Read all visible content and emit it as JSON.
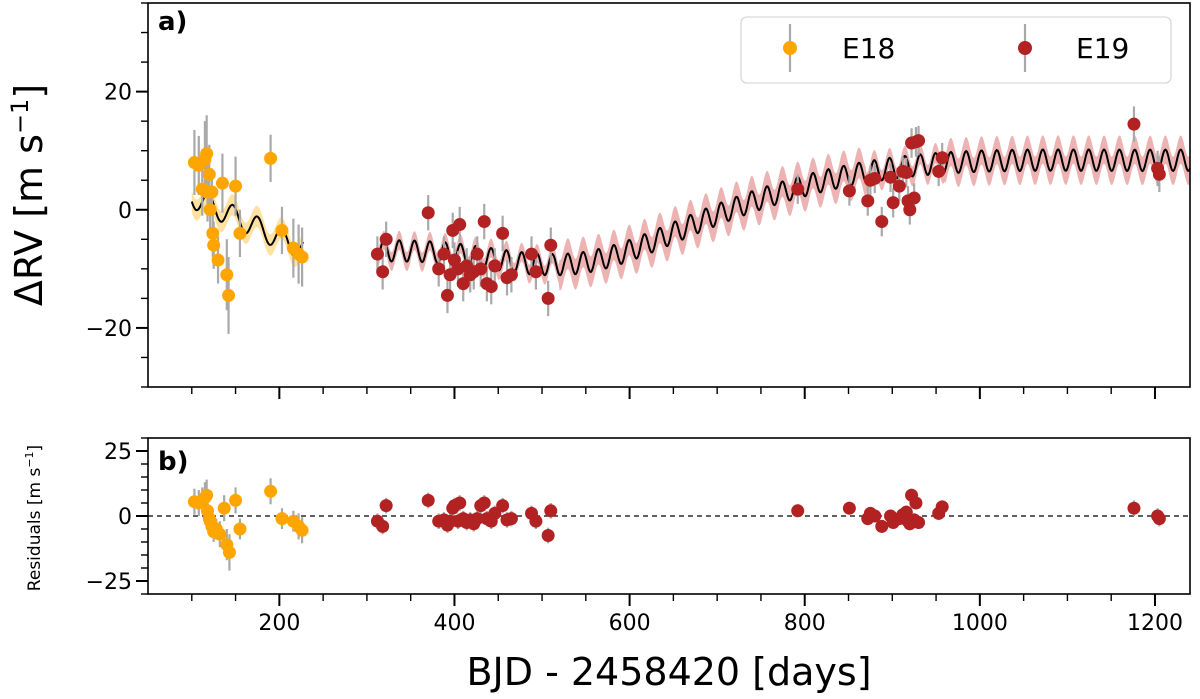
{
  "chart_data": [
    {
      "panel": "a)",
      "type": "scatter",
      "title": "",
      "xlabel": "",
      "ylabel": "ΔRV [m s⁻¹]",
      "ylabel_parts": {
        "main": "ΔRV [m s",
        "sup": "−1",
        "close": "]"
      },
      "xlim": [
        50,
        1240
      ],
      "ylim": [
        -30,
        35
      ],
      "yticks": [
        -20,
        0,
        20
      ],
      "ytick_labels": [
        "−20",
        "0",
        "20"
      ],
      "legend": {
        "position": "top-right",
        "entries": [
          "E18",
          "E19"
        ]
      },
      "series": [
        {
          "name": "E18",
          "color": "#FFA500",
          "points": [
            {
              "x": 103,
              "y": 8,
              "err": 5.5
            },
            {
              "x": 108,
              "y": 7.5,
              "err": 5
            },
            {
              "x": 112,
              "y": 3.5,
              "err": 4.5
            },
            {
              "x": 115,
              "y": 8.5,
              "err": 6.5
            },
            {
              "x": 117,
              "y": 9.5,
              "err": 6.5
            },
            {
              "x": 118,
              "y": 3,
              "err": 5
            },
            {
              "x": 120,
              "y": 6,
              "err": 5
            },
            {
              "x": 121,
              "y": 0,
              "err": 4
            },
            {
              "x": 123,
              "y": 3,
              "err": 4
            },
            {
              "x": 124,
              "y": -4,
              "err": 4
            },
            {
              "x": 125,
              "y": -6,
              "err": 4
            },
            {
              "x": 130,
              "y": -8.5,
              "err": 4
            },
            {
              "x": 135,
              "y": 4.5,
              "err": 5
            },
            {
              "x": 140,
              "y": -11,
              "err": 6
            },
            {
              "x": 142,
              "y": -14.5,
              "err": 6.5
            },
            {
              "x": 150,
              "y": 4,
              "err": 5
            },
            {
              "x": 155,
              "y": -4,
              "err": 4
            },
            {
              "x": 190,
              "y": 8.7,
              "err": 4
            },
            {
              "x": 203,
              "y": -3.5,
              "err": 4
            },
            {
              "x": 216,
              "y": -6.5,
              "err": 5
            },
            {
              "x": 222,
              "y": -7.5,
              "err": 5
            },
            {
              "x": 226,
              "y": -8,
              "err": 5
            }
          ]
        },
        {
          "name": "E19",
          "color": "#B22222",
          "points": [
            {
              "x": 312,
              "y": -7.5,
              "err": 3
            },
            {
              "x": 318,
              "y": -10.5,
              "err": 3
            },
            {
              "x": 322,
              "y": -5,
              "err": 3
            },
            {
              "x": 370,
              "y": -0.5,
              "err": 3
            },
            {
              "x": 382,
              "y": -10,
              "err": 3
            },
            {
              "x": 388,
              "y": -7.5,
              "err": 3
            },
            {
              "x": 392,
              "y": -14.5,
              "err": 3
            },
            {
              "x": 395,
              "y": -11,
              "err": 3
            },
            {
              "x": 398,
              "y": -3.5,
              "err": 3
            },
            {
              "x": 400,
              "y": -8.5,
              "err": 3
            },
            {
              "x": 404,
              "y": -10,
              "err": 3
            },
            {
              "x": 406,
              "y": -2.5,
              "err": 3
            },
            {
              "x": 410,
              "y": -12.5,
              "err": 3
            },
            {
              "x": 414,
              "y": -9.5,
              "err": 3
            },
            {
              "x": 418,
              "y": -11,
              "err": 3
            },
            {
              "x": 422,
              "y": -10.5,
              "err": 3
            },
            {
              "x": 426,
              "y": -7.5,
              "err": 3
            },
            {
              "x": 430,
              "y": -10,
              "err": 3
            },
            {
              "x": 434,
              "y": -2,
              "err": 3
            },
            {
              "x": 437,
              "y": -12.5,
              "err": 3
            },
            {
              "x": 442,
              "y": -13,
              "err": 3
            },
            {
              "x": 446,
              "y": -9.5,
              "err": 3
            },
            {
              "x": 455,
              "y": -4,
              "err": 3
            },
            {
              "x": 460,
              "y": -11.5,
              "err": 3
            },
            {
              "x": 465,
              "y": -11,
              "err": 3
            },
            {
              "x": 488,
              "y": -7.5,
              "err": 3
            },
            {
              "x": 493,
              "y": -10.5,
              "err": 3
            },
            {
              "x": 507,
              "y": -15,
              "err": 3
            },
            {
              "x": 510,
              "y": -6,
              "err": 3
            },
            {
              "x": 792,
              "y": 3.5,
              "err": 2.5
            },
            {
              "x": 851,
              "y": 3.2,
              "err": 2.5
            },
            {
              "x": 872,
              "y": 1.5,
              "err": 2.5
            },
            {
              "x": 875,
              "y": 5,
              "err": 2.5
            },
            {
              "x": 880,
              "y": 5.3,
              "err": 2.5
            },
            {
              "x": 888,
              "y": -2,
              "err": 2.5
            },
            {
              "x": 898,
              "y": 5.5,
              "err": 2.5
            },
            {
              "x": 901,
              "y": 1.2,
              "err": 2.5
            },
            {
              "x": 908,
              "y": 4,
              "err": 2.5
            },
            {
              "x": 912,
              "y": 6.5,
              "err": 2.5
            },
            {
              "x": 916,
              "y": 6.3,
              "err": 2.5
            },
            {
              "x": 918,
              "y": 1.5,
              "err": 2.5
            },
            {
              "x": 920,
              "y": 0,
              "err": 2.5
            },
            {
              "x": 922,
              "y": 11.3,
              "err": 2.5
            },
            {
              "x": 925,
              "y": 2,
              "err": 2.5
            },
            {
              "x": 927,
              "y": 11.5,
              "err": 2.5
            },
            {
              "x": 930,
              "y": 11.7,
              "err": 2.5
            },
            {
              "x": 953,
              "y": 6.5,
              "err": 2.5
            },
            {
              "x": 957,
              "y": 8.8,
              "err": 2.5
            },
            {
              "x": 1176,
              "y": 14.5,
              "err": 3
            },
            {
              "x": 1203,
              "y": 7,
              "err": 3
            },
            {
              "x": 1205,
              "y": 6,
              "err": 3
            }
          ]
        }
      ],
      "model": {
        "description": "GP + sinusoid model curve with confidence band",
        "line_color": "#000000",
        "band_color_e18": "#FFD98A",
        "band_color_e19": "#E8A0A0",
        "segments": [
          [
            100,
            228
          ],
          [
            312,
            1240
          ]
        ]
      }
    },
    {
      "panel": "b)",
      "type": "scatter",
      "title": "",
      "xlabel": "BJD - 2458420 [days]",
      "ylabel": "Residuals [m s⁻¹]",
      "ylabel_parts": {
        "main": "Residuals [m s",
        "sup": "−1",
        "close": "]"
      },
      "xlim": [
        50,
        1240
      ],
      "ylim": [
        -30,
        30
      ],
      "xticks": [
        200,
        400,
        600,
        800,
        1000,
        1200
      ],
      "xtick_labels": [
        "200",
        "400",
        "600",
        "800",
        "1000",
        "1200"
      ],
      "yticks": [
        -25,
        0,
        25
      ],
      "ytick_labels": [
        "−25",
        "0",
        "25"
      ],
      "zero_line": 0,
      "series": [
        {
          "name": "E18",
          "color": "#FFA500",
          "points": [
            {
              "x": 103,
              "y": 5.5,
              "err": 5
            },
            {
              "x": 108,
              "y": 5,
              "err": 5
            },
            {
              "x": 112,
              "y": 6,
              "err": 5
            },
            {
              "x": 115,
              "y": 7,
              "err": 6
            },
            {
              "x": 117,
              "y": 8,
              "err": 6
            },
            {
              "x": 118,
              "y": 2,
              "err": 5
            },
            {
              "x": 120,
              "y": -1,
              "err": 5
            },
            {
              "x": 121,
              "y": -2,
              "err": 4
            },
            {
              "x": 123,
              "y": -4,
              "err": 4
            },
            {
              "x": 125,
              "y": -6,
              "err": 4
            },
            {
              "x": 128,
              "y": -5,
              "err": 4
            },
            {
              "x": 132,
              "y": -7,
              "err": 5
            },
            {
              "x": 137,
              "y": 3,
              "err": 5
            },
            {
              "x": 140,
              "y": -11,
              "err": 6
            },
            {
              "x": 143,
              "y": -14,
              "err": 7
            },
            {
              "x": 150,
              "y": 6,
              "err": 5
            },
            {
              "x": 155,
              "y": -5,
              "err": 4
            },
            {
              "x": 190,
              "y": 9.5,
              "err": 5
            },
            {
              "x": 203,
              "y": -1,
              "err": 4
            },
            {
              "x": 216,
              "y": -2,
              "err": 4
            },
            {
              "x": 222,
              "y": -4,
              "err": 5
            },
            {
              "x": 226,
              "y": -5.5,
              "err": 5
            }
          ]
        },
        {
          "name": "E19",
          "color": "#B22222",
          "points": [
            {
              "x": 312,
              "y": -2,
              "err": 3
            },
            {
              "x": 318,
              "y": -4,
              "err": 3
            },
            {
              "x": 322,
              "y": 4,
              "err": 3
            },
            {
              "x": 370,
              "y": 6,
              "err": 3
            },
            {
              "x": 382,
              "y": -2,
              "err": 3
            },
            {
              "x": 388,
              "y": -1.5,
              "err": 3
            },
            {
              "x": 392,
              "y": -3.5,
              "err": 3
            },
            {
              "x": 395,
              "y": -2,
              "err": 3
            },
            {
              "x": 398,
              "y": 3,
              "err": 3
            },
            {
              "x": 400,
              "y": 4,
              "err": 3
            },
            {
              "x": 404,
              "y": -2,
              "err": 3
            },
            {
              "x": 406,
              "y": 5,
              "err": 3
            },
            {
              "x": 410,
              "y": -1,
              "err": 3
            },
            {
              "x": 414,
              "y": -2.5,
              "err": 3
            },
            {
              "x": 418,
              "y": -1.5,
              "err": 3
            },
            {
              "x": 422,
              "y": -3,
              "err": 3
            },
            {
              "x": 426,
              "y": -1,
              "err": 3
            },
            {
              "x": 430,
              "y": 4,
              "err": 3
            },
            {
              "x": 434,
              "y": 5,
              "err": 3
            },
            {
              "x": 437,
              "y": -1,
              "err": 3
            },
            {
              "x": 442,
              "y": -2,
              "err": 3
            },
            {
              "x": 446,
              "y": 1,
              "err": 3
            },
            {
              "x": 455,
              "y": 4,
              "err": 3
            },
            {
              "x": 460,
              "y": -1.5,
              "err": 3
            },
            {
              "x": 465,
              "y": -1,
              "err": 3
            },
            {
              "x": 488,
              "y": 1,
              "err": 3
            },
            {
              "x": 493,
              "y": -2,
              "err": 3
            },
            {
              "x": 507,
              "y": -7.5,
              "err": 3
            },
            {
              "x": 510,
              "y": 2,
              "err": 3
            },
            {
              "x": 792,
              "y": 2,
              "err": 2.5
            },
            {
              "x": 851,
              "y": 3,
              "err": 2.5
            },
            {
              "x": 872,
              "y": -1,
              "err": 2.5
            },
            {
              "x": 875,
              "y": 1,
              "err": 2.5
            },
            {
              "x": 880,
              "y": 0,
              "err": 2.5
            },
            {
              "x": 888,
              "y": -4,
              "err": 2.5
            },
            {
              "x": 898,
              "y": 0,
              "err": 2.5
            },
            {
              "x": 901,
              "y": -2.5,
              "err": 2.5
            },
            {
              "x": 908,
              "y": -1,
              "err": 2.5
            },
            {
              "x": 912,
              "y": 0.5,
              "err": 2.5
            },
            {
              "x": 916,
              "y": 1.5,
              "err": 2.5
            },
            {
              "x": 918,
              "y": -2,
              "err": 2.5
            },
            {
              "x": 920,
              "y": -3,
              "err": 2.5
            },
            {
              "x": 922,
              "y": 8,
              "err": 2.5
            },
            {
              "x": 925,
              "y": -1.5,
              "err": 2.5
            },
            {
              "x": 927,
              "y": 5,
              "err": 2.5
            },
            {
              "x": 930,
              "y": -2.5,
              "err": 2.5
            },
            {
              "x": 953,
              "y": 1,
              "err": 2.5
            },
            {
              "x": 957,
              "y": 3.5,
              "err": 2.5
            },
            {
              "x": 1176,
              "y": 3,
              "err": 3
            },
            {
              "x": 1203,
              "y": 0,
              "err": 3
            },
            {
              "x": 1205,
              "y": -1,
              "err": 3
            }
          ]
        }
      ]
    }
  ]
}
